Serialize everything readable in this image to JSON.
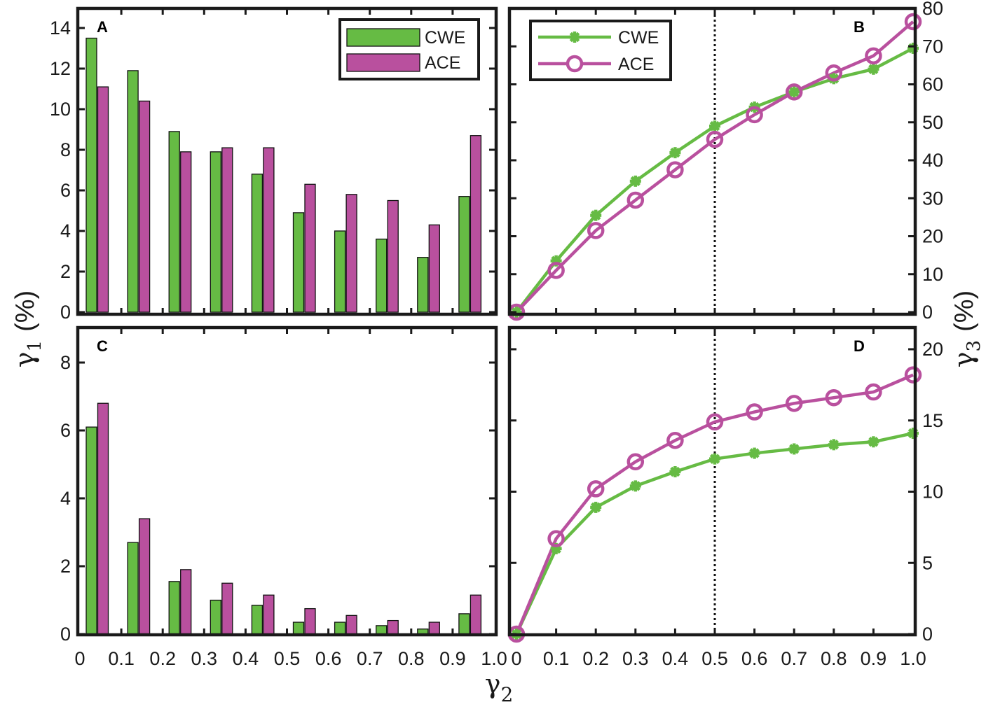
{
  "figure": {
    "x_axis_label": "γ",
    "x_axis_sub": "2",
    "left_axis_label": "γ",
    "left_axis_sub": "1",
    "left_axis_unit": "(%)",
    "right_axis_label": "γ",
    "right_axis_sub": "3",
    "right_axis_unit": "(%)",
    "colors": {
      "CWE": "#66bb44",
      "ACE": "#b9509e"
    },
    "legend": [
      "CWE",
      "ACE"
    ]
  },
  "chart_data": [
    {
      "panel": "A",
      "type": "bar",
      "xlabel": "γ2",
      "ylabel": "γ1 (%)",
      "categories": [
        "0",
        "0.1",
        "0.2",
        "0.3",
        "0.4",
        "0.5",
        "0.6",
        "0.7",
        "0.8",
        "0.9"
      ],
      "x_tick_labels": [
        "0",
        "0.1",
        "0.2",
        "0.3",
        "0.4",
        "0.5",
        "0.6",
        "0.7",
        "0.8",
        "0.9",
        "1.0"
      ],
      "ylim": [
        0,
        15
      ],
      "y_ticks": [
        0,
        2,
        4,
        6,
        8,
        10,
        12,
        14
      ],
      "series": [
        {
          "name": "CWE",
          "values": [
            13.5,
            11.9,
            8.9,
            7.9,
            6.8,
            4.9,
            4.0,
            3.6,
            2.7,
            5.7
          ]
        },
        {
          "name": "ACE",
          "values": [
            11.1,
            10.4,
            7.9,
            8.1,
            8.1,
            6.3,
            5.8,
            5.5,
            4.3,
            8.7
          ]
        }
      ],
      "legend_position": "upper right",
      "grid": false
    },
    {
      "panel": "B",
      "type": "line",
      "xlabel": "γ2",
      "ylabel": "γ3 (%)",
      "x": [
        0,
        0.1,
        0.2,
        0.3,
        0.4,
        0.5,
        0.6,
        0.7,
        0.8,
        0.9,
        1.0
      ],
      "ylim": [
        0,
        80
      ],
      "y_ticks": [
        0,
        10,
        20,
        30,
        40,
        50,
        60,
        70,
        80
      ],
      "y_axis_side": "right",
      "vertical_reference_line": 0.5,
      "series": [
        {
          "name": "CWE",
          "marker": "asterisk",
          "values": [
            0,
            13.5,
            25.5,
            34.5,
            42.0,
            49.0,
            54.0,
            58.0,
            61.5,
            64.0,
            69.5
          ]
        },
        {
          "name": "ACE",
          "marker": "circle",
          "values": [
            0,
            11.0,
            21.5,
            29.5,
            37.5,
            45.5,
            52.0,
            58.0,
            63.0,
            67.5,
            76.5
          ]
        }
      ],
      "legend_position": "upper left",
      "grid": false
    },
    {
      "panel": "C",
      "type": "bar",
      "xlabel": "γ2",
      "ylabel": "γ1 (%)",
      "categories": [
        "0",
        "0.1",
        "0.2",
        "0.3",
        "0.4",
        "0.5",
        "0.6",
        "0.7",
        "0.8",
        "0.9"
      ],
      "x_tick_labels": [
        "0",
        "0.1",
        "0.2",
        "0.3",
        "0.4",
        "0.5",
        "0.6",
        "0.7",
        "0.8",
        "0.9",
        "1.0"
      ],
      "ylim": [
        0,
        9
      ],
      "y_ticks": [
        0,
        2,
        4,
        6,
        8
      ],
      "series": [
        {
          "name": "CWE",
          "values": [
            6.1,
            2.7,
            1.55,
            1.0,
            0.85,
            0.35,
            0.35,
            0.25,
            0.15,
            0.6
          ]
        },
        {
          "name": "ACE",
          "values": [
            6.8,
            3.4,
            1.9,
            1.5,
            1.15,
            0.75,
            0.55,
            0.4,
            0.35,
            1.15
          ]
        }
      ],
      "grid": false
    },
    {
      "panel": "D",
      "type": "line",
      "xlabel": "γ2",
      "ylabel": "γ3 (%)",
      "x": [
        0,
        0.1,
        0.2,
        0.3,
        0.4,
        0.5,
        0.6,
        0.7,
        0.8,
        0.9,
        1.0
      ],
      "ylim": [
        0,
        21.5
      ],
      "y_ticks": [
        0,
        5,
        10,
        15,
        20
      ],
      "y_axis_side": "right",
      "vertical_reference_line": 0.5,
      "series": [
        {
          "name": "CWE",
          "marker": "asterisk",
          "values": [
            0,
            6.0,
            8.9,
            10.4,
            11.4,
            12.3,
            12.7,
            13.0,
            13.3,
            13.5,
            14.1
          ]
        },
        {
          "name": "ACE",
          "marker": "circle",
          "values": [
            0,
            6.7,
            10.2,
            12.1,
            13.6,
            14.9,
            15.6,
            16.2,
            16.6,
            17.0,
            18.2
          ]
        }
      ],
      "grid": false
    }
  ]
}
